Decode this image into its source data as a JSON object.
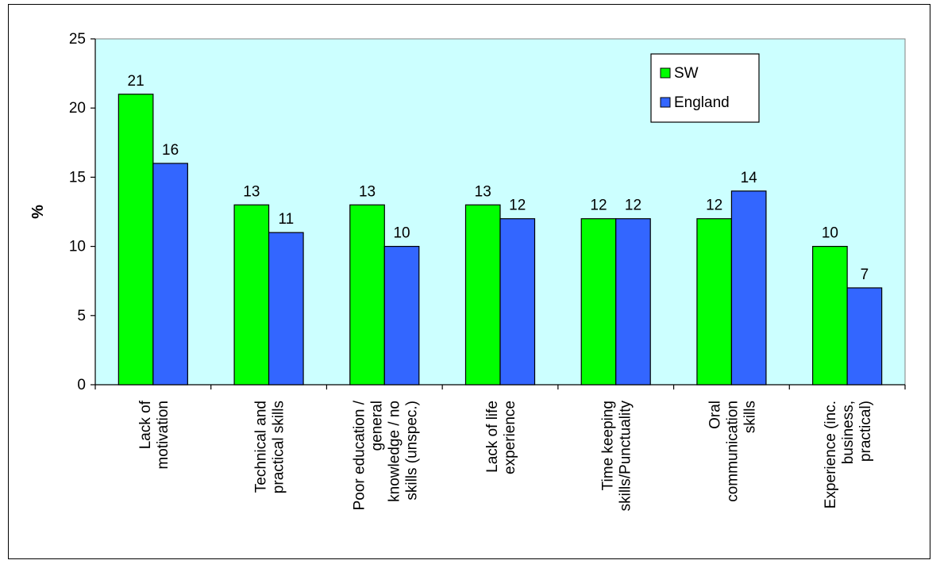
{
  "chart_data": {
    "type": "bar",
    "title": "",
    "xlabel": "",
    "ylabel": "%",
    "ylim": [
      0,
      25
    ],
    "yticks": [
      0,
      5,
      10,
      15,
      20,
      25
    ],
    "grid": false,
    "legend_position": "top-right",
    "plot_background": "#ccffff",
    "categories": [
      [
        "Lack of",
        "motivation"
      ],
      [
        "Technical and",
        "practical skills"
      ],
      [
        "Poor education /",
        "general",
        "knowledge / no",
        "skills (unspec.)"
      ],
      [
        "Lack of life",
        "experience"
      ],
      [
        "Time keeping",
        "skills/Punctuality"
      ],
      [
        "Oral",
        "communication",
        "skills"
      ],
      [
        "Experience (inc.",
        "business,",
        "practical)"
      ]
    ],
    "series": [
      {
        "name": "SW",
        "color": "#00ff00",
        "values": [
          21,
          13,
          13,
          13,
          12,
          12,
          10
        ]
      },
      {
        "name": "England",
        "color": "#3366ff",
        "values": [
          16,
          11,
          10,
          12,
          12,
          14,
          7
        ]
      }
    ]
  }
}
